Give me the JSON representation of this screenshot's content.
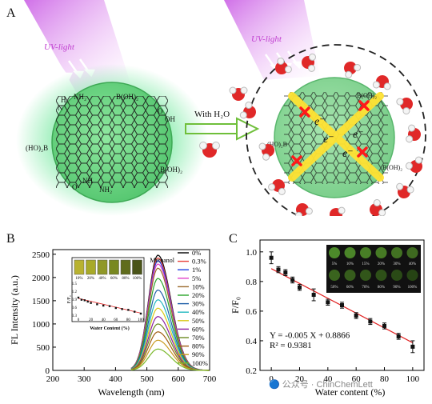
{
  "panels": {
    "a": "A",
    "b": "B",
    "c": "C"
  },
  "scheme": {
    "uv_label": "UV-light",
    "arrow_label": "With H₂O",
    "groups_left": [
      "NH₂",
      "B(OH)₂",
      "OH",
      "O",
      "N",
      "(HO)₂B",
      "B(OH)₂",
      "NH₂",
      "O",
      "NH",
      "H"
    ],
    "electron": "e⁻",
    "colors": {
      "dot": "#3fe07a",
      "uv": "#d04ee0",
      "arrow": "#6fbf3a",
      "cross": "#ff1a1a",
      "beam": "#ffe233"
    }
  },
  "chart_b": {
    "inset_label": "Methanol",
    "inset_vial_labels": [
      "10%",
      "20%",
      "40%",
      "60%",
      "80%",
      "100%"
    ],
    "inset_xlabel": "Water Content (%)",
    "inset_ylabel": "F/F₀",
    "inset_xticks": [
      "0",
      "20",
      "40",
      "60",
      "80",
      "100"
    ],
    "inset_yticks": [
      "0.3",
      "0.6",
      "0.9",
      "1.2",
      "1.5"
    ]
  },
  "chart_c": {
    "equation": "Y = -0.005 X + 0.8866",
    "r2": "R² = 0.9381",
    "vial_labels_top": [
      "5%",
      "10%",
      "15%",
      "20%",
      "30%",
      "40%"
    ],
    "vial_labels_bottom": [
      "50%",
      "60%",
      "70%",
      "80%",
      "90%",
      "100%"
    ]
  },
  "watermark": "🔵 公众号 · ChinChemLett",
  "chart_data": [
    {
      "type": "line",
      "xlabel": "Wavelength (nm)",
      "ylabel": "FL Intensity (a.u.)",
      "xlim": [
        200,
        700
      ],
      "ylim": [
        0,
        2600
      ],
      "xticks": [
        200,
        300,
        400,
        500,
        600,
        700
      ],
      "yticks": [
        0,
        500,
        1000,
        1500,
        2000,
        2500
      ],
      "peak_wavelength": 535,
      "series": [
        {
          "name": "0%",
          "peak": 2480,
          "color": "#000000"
        },
        {
          "name": "0.3%",
          "peak": 2420,
          "color": "#e8403a"
        },
        {
          "name": "1%",
          "peak": 2360,
          "color": "#1f3fe0"
        },
        {
          "name": "5%",
          "peak": 2290,
          "color": "#e040c8"
        },
        {
          "name": "10%",
          "peak": 2200,
          "color": "#9b6a2c"
        },
        {
          "name": "20%",
          "peak": 1980,
          "color": "#2ba52b"
        },
        {
          "name": "30%",
          "peak": 1730,
          "color": "#1f5fa8"
        },
        {
          "name": "40%",
          "peak": 1520,
          "color": "#20b8c0"
        },
        {
          "name": "50%",
          "peak": 1340,
          "color": "#d9c817"
        },
        {
          "name": "60%",
          "peak": 1160,
          "color": "#8a1fa0"
        },
        {
          "name": "70%",
          "peak": 1000,
          "color": "#6b8a22"
        },
        {
          "name": "80%",
          "peak": 830,
          "color": "#a05c10"
        },
        {
          "name": "90%",
          "peak": 650,
          "color": "#c89a20"
        },
        {
          "name": "100%",
          "peak": 460,
          "color": "#7ab82a"
        }
      ]
    },
    {
      "type": "scatter",
      "xlabel": "Water content (%)",
      "ylabel": "F/F₀",
      "xlim": [
        -8,
        108
      ],
      "ylim": [
        0.2,
        1.08
      ],
      "xticks": [
        0,
        20,
        40,
        60,
        80,
        100
      ],
      "yticks": [
        0.2,
        0.4,
        0.6,
        0.8,
        1.0
      ],
      "points": [
        {
          "x": 0,
          "y": 0.96,
          "err": 0.04
        },
        {
          "x": 5,
          "y": 0.88,
          "err": 0.02
        },
        {
          "x": 10,
          "y": 0.86,
          "err": 0.02
        },
        {
          "x": 15,
          "y": 0.81,
          "err": 0.02
        },
        {
          "x": 20,
          "y": 0.76,
          "err": 0.02
        },
        {
          "x": 30,
          "y": 0.71,
          "err": 0.04
        },
        {
          "x": 40,
          "y": 0.66,
          "err": 0.02
        },
        {
          "x": 50,
          "y": 0.64,
          "err": 0.02
        },
        {
          "x": 60,
          "y": 0.57,
          "err": 0.02
        },
        {
          "x": 70,
          "y": 0.53,
          "err": 0.02
        },
        {
          "x": 80,
          "y": 0.5,
          "err": 0.02
        },
        {
          "x": 90,
          "y": 0.43,
          "err": 0.02
        },
        {
          "x": 100,
          "y": 0.36,
          "err": 0.04
        }
      ],
      "fit": {
        "slope": -0.005,
        "intercept": 0.8866,
        "color": "#e02020"
      }
    }
  ]
}
